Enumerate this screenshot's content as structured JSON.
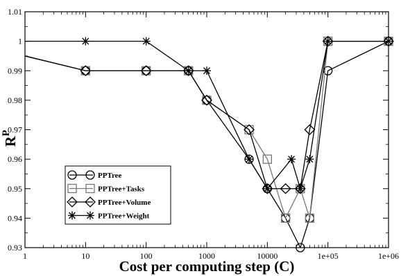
{
  "chart_data": {
    "type": "line",
    "xlabel": "Cost per computing step (C)",
    "ylabel": "R",
    "ylabel_superscript": "P",
    "xscale": "log",
    "xlim": [
      1,
      1000000
    ],
    "ylim": [
      0.93,
      1.01
    ],
    "grid": false,
    "legend_position": "bottom-left",
    "x_tick_values": [
      1,
      10,
      100,
      1000,
      10000,
      100000,
      1000000
    ],
    "x_tick_labels": [
      "1",
      "10",
      "100",
      "1000",
      "10000",
      "1e+05",
      "1e+06"
    ],
    "y_tick_values": [
      0.93,
      0.94,
      0.95,
      0.96,
      0.97,
      0.98,
      0.99,
      1.0,
      1.01
    ],
    "y_tick_labels": [
      "0.93",
      "0.94",
      "0.95",
      "0.96",
      "0.97",
      "0.98",
      "0.99",
      "1",
      "1.01"
    ],
    "series": [
      {
        "name": "PPTree",
        "marker": "circle",
        "color": "#000000",
        "x": [
          1,
          10,
          100,
          500,
          1000,
          5000,
          10000,
          20000,
          35000,
          50000,
          100000,
          1000000
        ],
        "y": [
          0.995,
          0.99,
          0.99,
          0.99,
          0.98,
          0.96,
          0.95,
          0.94,
          0.93,
          0.94,
          0.99,
          1.0
        ]
      },
      {
        "name": "PPTree+Tasks",
        "marker": "square",
        "color": "#777777",
        "x": [
          1,
          10,
          100,
          500,
          1000,
          5000,
          10000,
          20000,
          35000,
          50000,
          100000,
          1000000
        ],
        "y": [
          0.995,
          0.99,
          0.99,
          0.99,
          0.98,
          0.97,
          0.96,
          0.94,
          0.95,
          0.94,
          1.0,
          1.0
        ]
      },
      {
        "name": "PPTree+Volume",
        "marker": "diamond",
        "color": "#000000",
        "x": [
          1,
          10,
          100,
          500,
          1000,
          5000,
          10000,
          20000,
          35000,
          50000,
          100000,
          1000000
        ],
        "y": [
          0.995,
          0.99,
          0.99,
          0.99,
          0.98,
          0.97,
          0.95,
          0.95,
          0.95,
          0.97,
          1.0,
          1.0
        ]
      },
      {
        "name": "PPTree+Weight",
        "marker": "star",
        "color": "#000000",
        "x": [
          1,
          10,
          100,
          500,
          1000,
          5000,
          10000,
          25000,
          35000,
          50000,
          100000,
          1000000
        ],
        "y": [
          1.0,
          1.0,
          1.0,
          0.99,
          0.99,
          0.96,
          0.95,
          0.96,
          0.95,
          0.96,
          1.0,
          1.0
        ]
      }
    ]
  }
}
